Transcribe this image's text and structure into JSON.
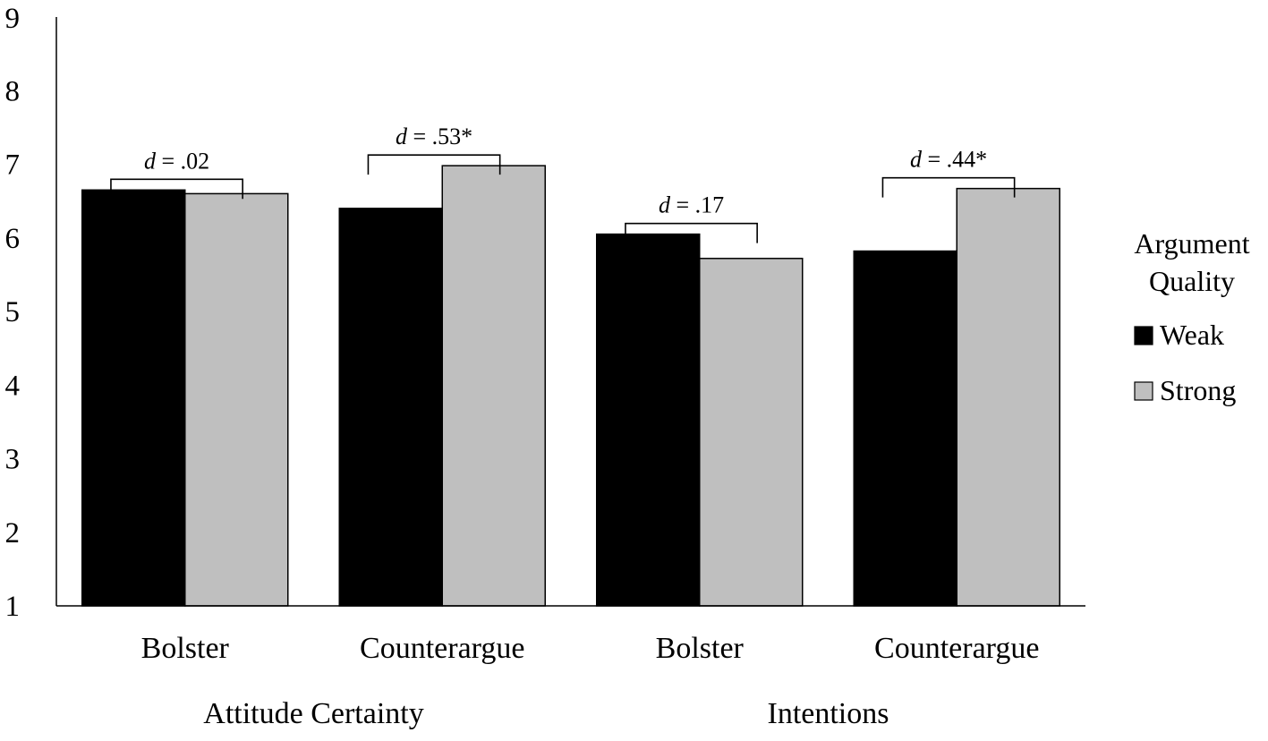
{
  "chart_data": {
    "type": "bar",
    "title": "",
    "xlabel": "",
    "ylabel": "",
    "ylim": [
      1,
      9
    ],
    "yticks": [
      "1",
      "2",
      "3",
      "4",
      "5",
      "6",
      "7",
      "8",
      "9"
    ],
    "grid": false,
    "groups": [
      {
        "label": "Attitude Certainty",
        "categories": [
          "Bolster",
          "Counterargue"
        ]
      },
      {
        "label": "Intentions",
        "categories": [
          "Bolster",
          "Counterargue"
        ]
      }
    ],
    "categories": [
      "Bolster",
      "Counterargue",
      "Bolster",
      "Counterargue"
    ],
    "series": [
      {
        "name": "Weak",
        "color": "#000000",
        "values": [
          6.65,
          6.4,
          6.05,
          5.82
        ]
      },
      {
        "name": "Strong",
        "color": "#bfbfbf",
        "values": [
          6.6,
          6.98,
          5.72,
          6.67
        ]
      }
    ],
    "annotations": [
      {
        "category_index": 0,
        "prefix": "d",
        "text": " = .02"
      },
      {
        "category_index": 1,
        "prefix": "d",
        "text": " = .53*"
      },
      {
        "category_index": 2,
        "prefix": "d",
        "text": " = .17"
      },
      {
        "category_index": 3,
        "prefix": "d",
        "text": " = .44*"
      }
    ],
    "legend": {
      "title_lines": [
        "Argument",
        "Quality"
      ],
      "placement": "right"
    }
  }
}
